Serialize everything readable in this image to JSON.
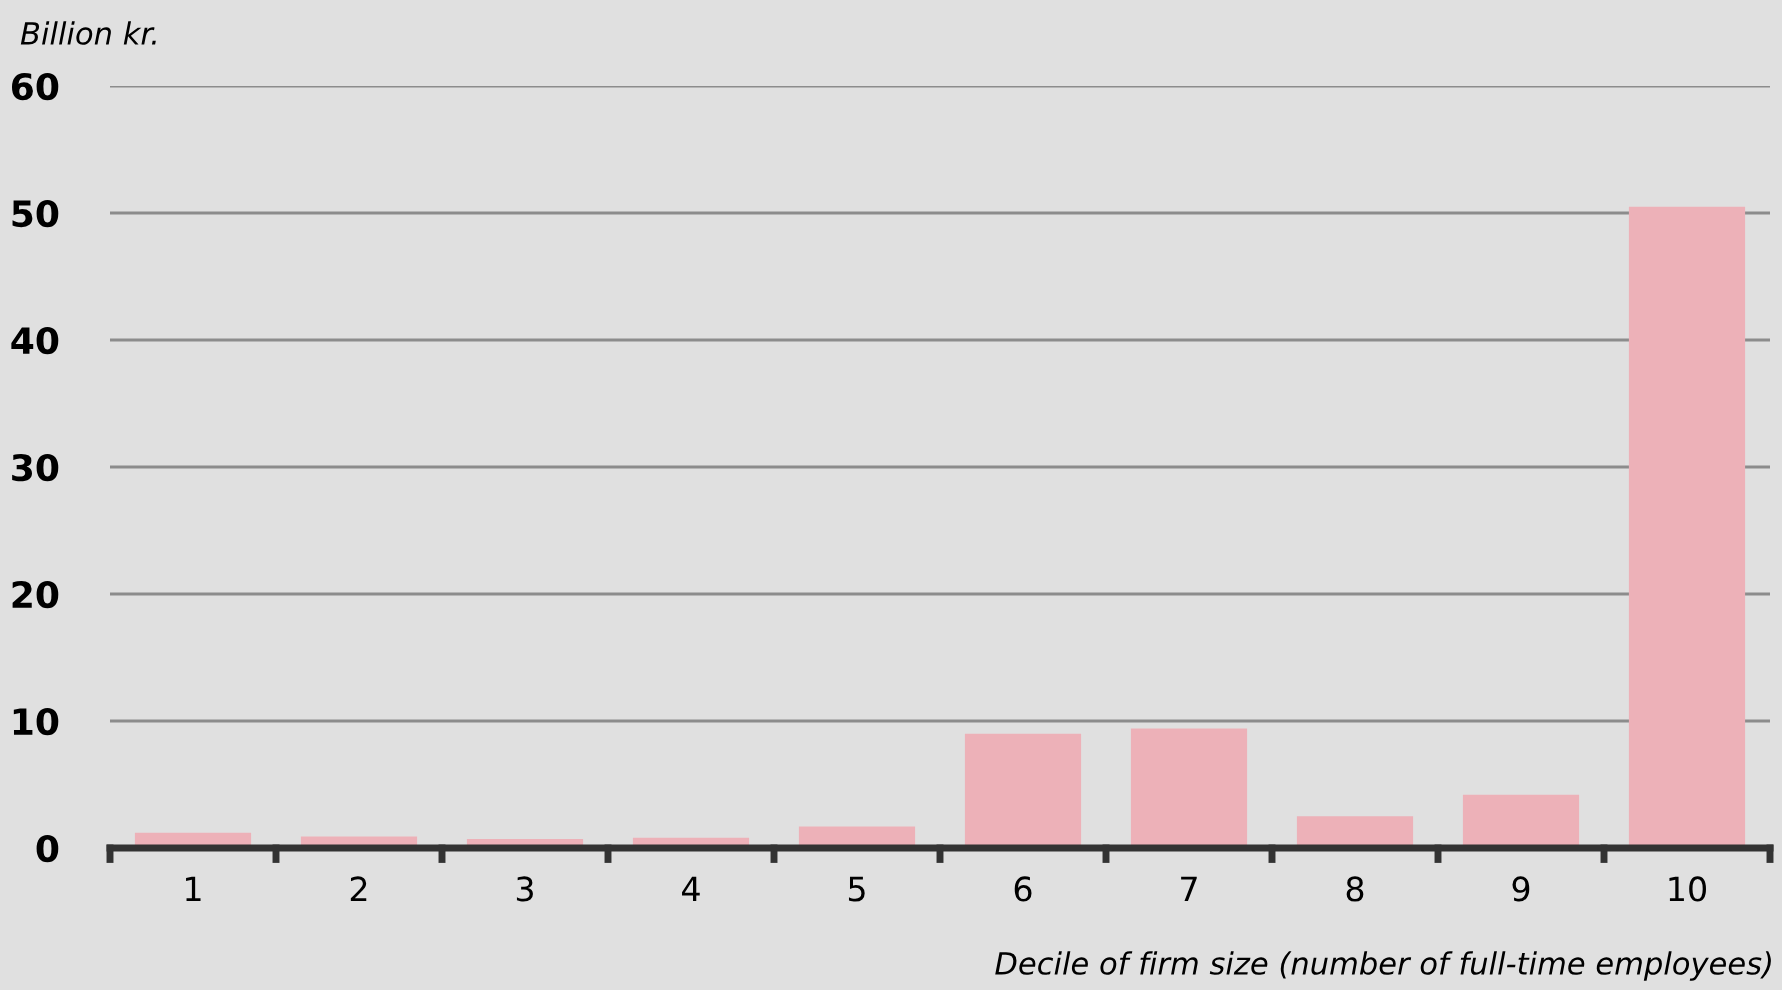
{
  "chart_data": {
    "type": "bar",
    "ylabel": "Billion kr.",
    "xlabel": "Decile of firm size (number of full-time employees)",
    "categories": [
      "1",
      "2",
      "3",
      "4",
      "5",
      "6",
      "7",
      "8",
      "9",
      "10"
    ],
    "values": [
      1.2,
      0.9,
      0.7,
      0.8,
      1.7,
      9.0,
      9.4,
      2.5,
      4.2,
      50.5
    ],
    "color": "#edb1b8",
    "ylim": [
      0,
      60
    ],
    "yticks": [
      0,
      10,
      20,
      30,
      40,
      50,
      60
    ],
    "grid": "y"
  }
}
